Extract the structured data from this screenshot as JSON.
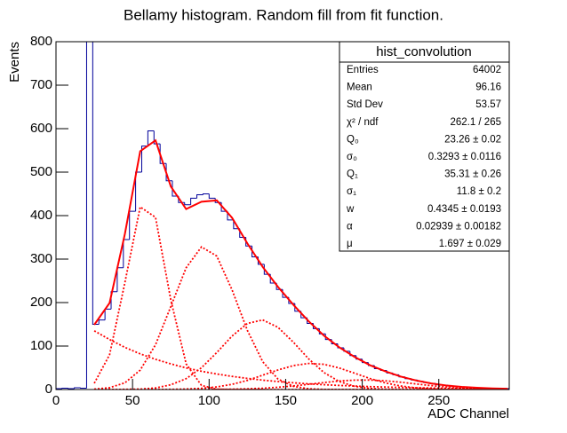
{
  "chart_data": {
    "type": "histogram",
    "title": "Bellamy histogram. Random fill from fit function.",
    "xlabel": "ADC Channel",
    "ylabel": "Events",
    "bins": [
      0,
      4,
      8,
      12,
      16,
      20,
      24,
      28,
      32,
      36,
      40,
      44,
      48,
      52,
      56,
      60,
      64,
      68,
      72,
      76,
      80,
      84,
      88,
      92,
      96,
      100,
      104,
      108,
      112,
      116,
      120,
      124,
      128,
      132,
      136,
      140,
      144,
      148,
      152,
      156,
      160,
      164,
      168,
      172,
      176,
      180,
      184,
      188,
      192,
      196,
      200,
      204,
      208,
      212,
      216,
      220,
      224,
      228,
      232,
      236,
      240,
      244,
      248,
      252,
      256,
      260,
      264,
      268,
      272,
      276,
      280,
      284,
      288,
      292,
      296
    ],
    "counts": [
      2,
      3,
      2,
      4,
      3,
      820,
      150,
      160,
      185,
      225,
      280,
      345,
      410,
      500,
      560,
      595,
      565,
      520,
      480,
      445,
      430,
      425,
      440,
      448,
      450,
      440,
      430,
      410,
      390,
      370,
      350,
      330,
      305,
      288,
      265,
      245,
      230,
      212,
      198,
      180,
      165,
      152,
      140,
      128,
      115,
      105,
      96,
      88,
      78,
      70,
      62,
      55,
      48,
      44,
      38,
      34,
      29,
      25,
      22,
      19,
      16,
      14,
      11,
      10,
      8,
      7,
      6,
      5,
      4,
      4,
      3,
      3,
      2,
      2
    ],
    "color": "#000099",
    "xlim": [
      0,
      296
    ],
    "ylim": [
      0,
      800
    ],
    "xticks": [
      0,
      50,
      100,
      150,
      200,
      250
    ],
    "yticks": [
      0,
      100,
      200,
      300,
      400,
      500,
      600,
      700,
      800
    ],
    "fit": {
      "x": [
        25,
        35,
        45,
        55,
        65,
        75,
        85,
        95,
        105,
        115,
        125,
        135,
        145,
        155,
        165,
        175,
        185,
        195,
        205,
        215,
        225,
        235,
        245,
        255,
        265,
        275,
        285,
        295
      ],
      "series": [
        {
          "color": "#ff0000",
          "style": "solid",
          "values": [
            149,
            199,
            358,
            548,
            573,
            467,
            415,
            432,
            435,
            395,
            336,
            282,
            236,
            195,
            157,
            124,
            97,
            75,
            56,
            42,
            30,
            21,
            14,
            9.3,
            6.1,
            4,
            2.6,
            1.9
          ]
        },
        {
          "color": "#ff0000",
          "style": "dotted",
          "values": [
            14.4,
            80,
            246,
            420,
            396,
            206,
            59,
            9.5,
            0.8,
            0,
            0,
            0,
            0,
            0,
            0,
            0,
            0,
            0,
            0,
            0,
            0,
            0,
            0,
            0,
            0,
            0,
            0,
            0
          ]
        },
        {
          "color": "#ff0000",
          "style": "dotted",
          "values": [
            0.9,
            4.2,
            15.4,
            44.7,
            103,
            191,
            280,
            328,
            307,
            229,
            136,
            64,
            24,
            7.3,
            1.7,
            0.3,
            0,
            0,
            0,
            0,
            0,
            0,
            0,
            0,
            0,
            0,
            0,
            0
          ]
        },
        {
          "color": "#ff0000",
          "style": "dotted",
          "values": [
            0,
            0.1,
            0.4,
            1,
            3.6,
            10.9,
            25,
            50,
            85,
            123,
            152,
            160,
            143,
            109,
            70.5,
            39,
            18.4,
            7.4,
            2.5,
            0.7,
            0.2,
            0,
            0,
            0,
            0,
            0,
            0,
            0
          ]
        },
        {
          "color": "#ff0000",
          "style": "dotted",
          "values": [
            0,
            0,
            0,
            0,
            0.1,
            0.4,
            1.1,
            2.8,
            6,
            12,
            21,
            33,
            45,
            55,
            60,
            58,
            49.5,
            37.6,
            25.4,
            15.3,
            8.1,
            3.8,
            1.6,
            0.6,
            0.2,
            0.1,
            0,
            0
          ]
        },
        {
          "color": "#ff0000",
          "style": "dotted",
          "values": [
            0,
            0,
            0,
            0,
            0,
            0,
            0,
            0,
            0.3,
            0.7,
            1.6,
            3,
            5.2,
            8.3,
            12,
            16,
            19.6,
            21.6,
            21.8,
            20.1,
            16.9,
            12.9,
            9,
            5.8,
            3.4,
            1.8,
            0.9,
            0.4
          ]
        },
        {
          "color": "#ff0000",
          "style": "dotted",
          "values": [
            135,
            115,
            97,
            82,
            69.5,
            59,
            49.7,
            42,
            35.7,
            30.2,
            25.6,
            21.6,
            18.3,
            15.5,
            13.1,
            11.1,
            9.4,
            8,
            6.7,
            5.7,
            4.8,
            4.1,
            3.5,
            2.9,
            2.5,
            2.1,
            1.7,
            1.5
          ]
        }
      ]
    },
    "stats": {
      "title": "hist_convolution",
      "rows": [
        [
          "Entries",
          "64002"
        ],
        [
          "Mean",
          "96.16"
        ],
        [
          "Std Dev",
          "53.57"
        ],
        [
          "χ² / ndf",
          "262.1 / 265"
        ],
        [
          "Q₀",
          "23.26 ± 0.02"
        ],
        [
          "σ₀",
          "0.3293 ± 0.0116"
        ],
        [
          "Q₁",
          "35.31 ± 0.26"
        ],
        [
          "σ₁",
          "11.8 ± 0.2"
        ],
        [
          "w",
          "0.4345 ± 0.0193"
        ],
        [
          "α",
          "0.02939 ± 0.00182"
        ],
        [
          "μ",
          "1.697 ± 0.029"
        ]
      ]
    }
  }
}
